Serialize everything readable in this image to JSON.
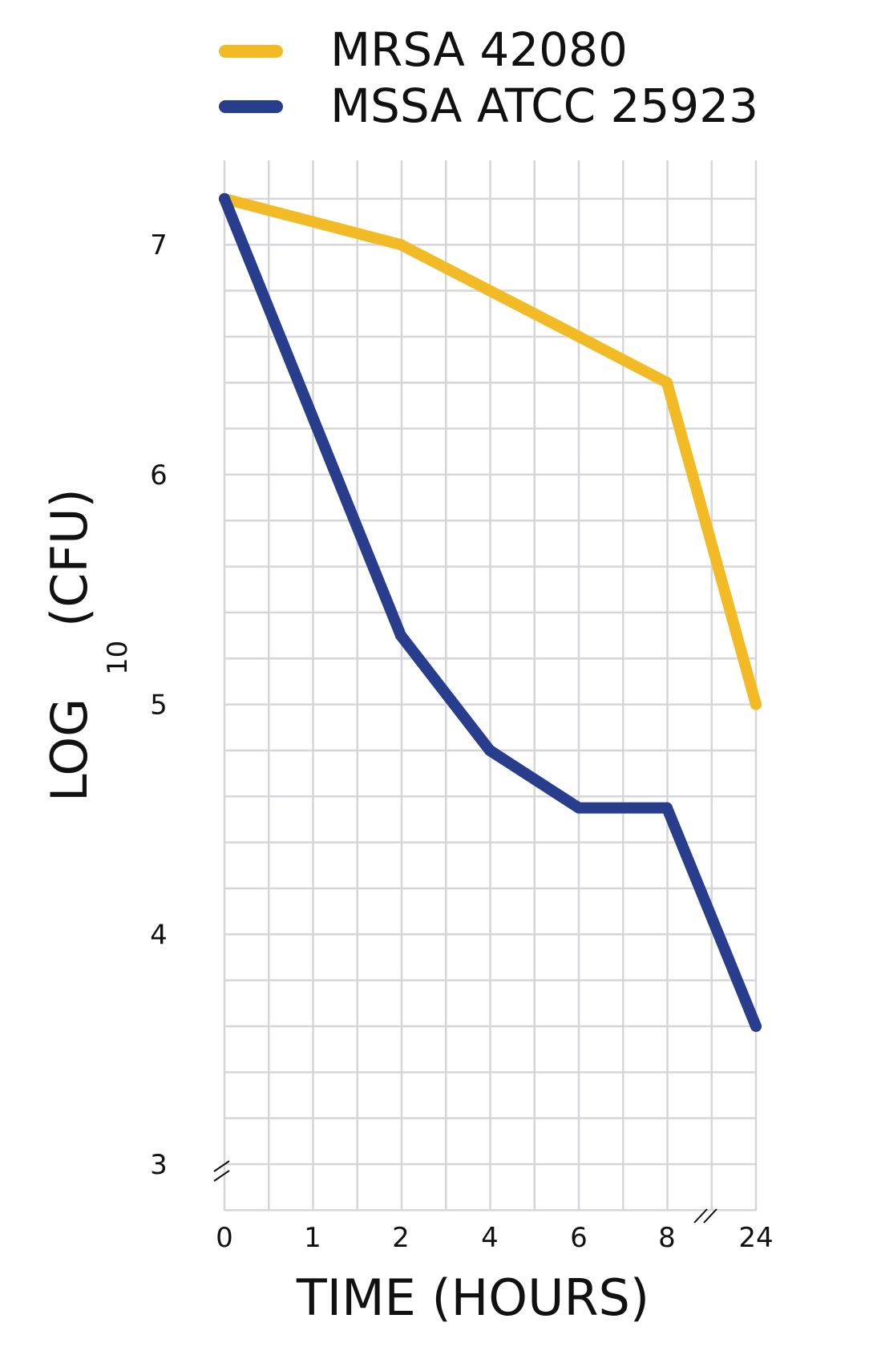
{
  "colors": {
    "mrsa": "#F2BB26",
    "mssa": "#283D8C",
    "grid": "#D6D6DA",
    "text": "#111111"
  },
  "chart_data": {
    "type": "line",
    "xlabel": "TIME (HOURS)",
    "ylabel": {
      "main": "LOG",
      "subscript": "10",
      "unit": "(CFU)"
    },
    "x": [
      0,
      2,
      4,
      6,
      8,
      24
    ],
    "x_tick_labels": [
      "0",
      "1",
      "2",
      "4",
      "6",
      "8",
      "24"
    ],
    "y_ticks": [
      3,
      4,
      5,
      6,
      7
    ],
    "ylim": [
      2.8,
      7.3
    ],
    "grid": true,
    "axis_breaks": [
      "y-axis-near-origin",
      "x-axis-between-8-and-24"
    ],
    "legend_position": "top",
    "series": [
      {
        "name": "MRSA 42080",
        "color": "#F2BB26",
        "points": [
          {
            "x": 0,
            "y": 7.2
          },
          {
            "x": 2,
            "y": 7.0
          },
          {
            "x": 4,
            "y": 6.8
          },
          {
            "x": 6,
            "y": 6.6
          },
          {
            "x": 8,
            "y": 6.4
          },
          {
            "x": 24,
            "y": 5.0
          }
        ]
      },
      {
        "name": "MSSA ATCC 25923",
        "color": "#283D8C",
        "points": [
          {
            "x": 0,
            "y": 7.2
          },
          {
            "x": 2,
            "y": 5.3
          },
          {
            "x": 4,
            "y": 4.8
          },
          {
            "x": 6,
            "y": 4.55
          },
          {
            "x": 8,
            "y": 4.55
          },
          {
            "x": 24,
            "y": 3.6
          }
        ]
      }
    ]
  }
}
